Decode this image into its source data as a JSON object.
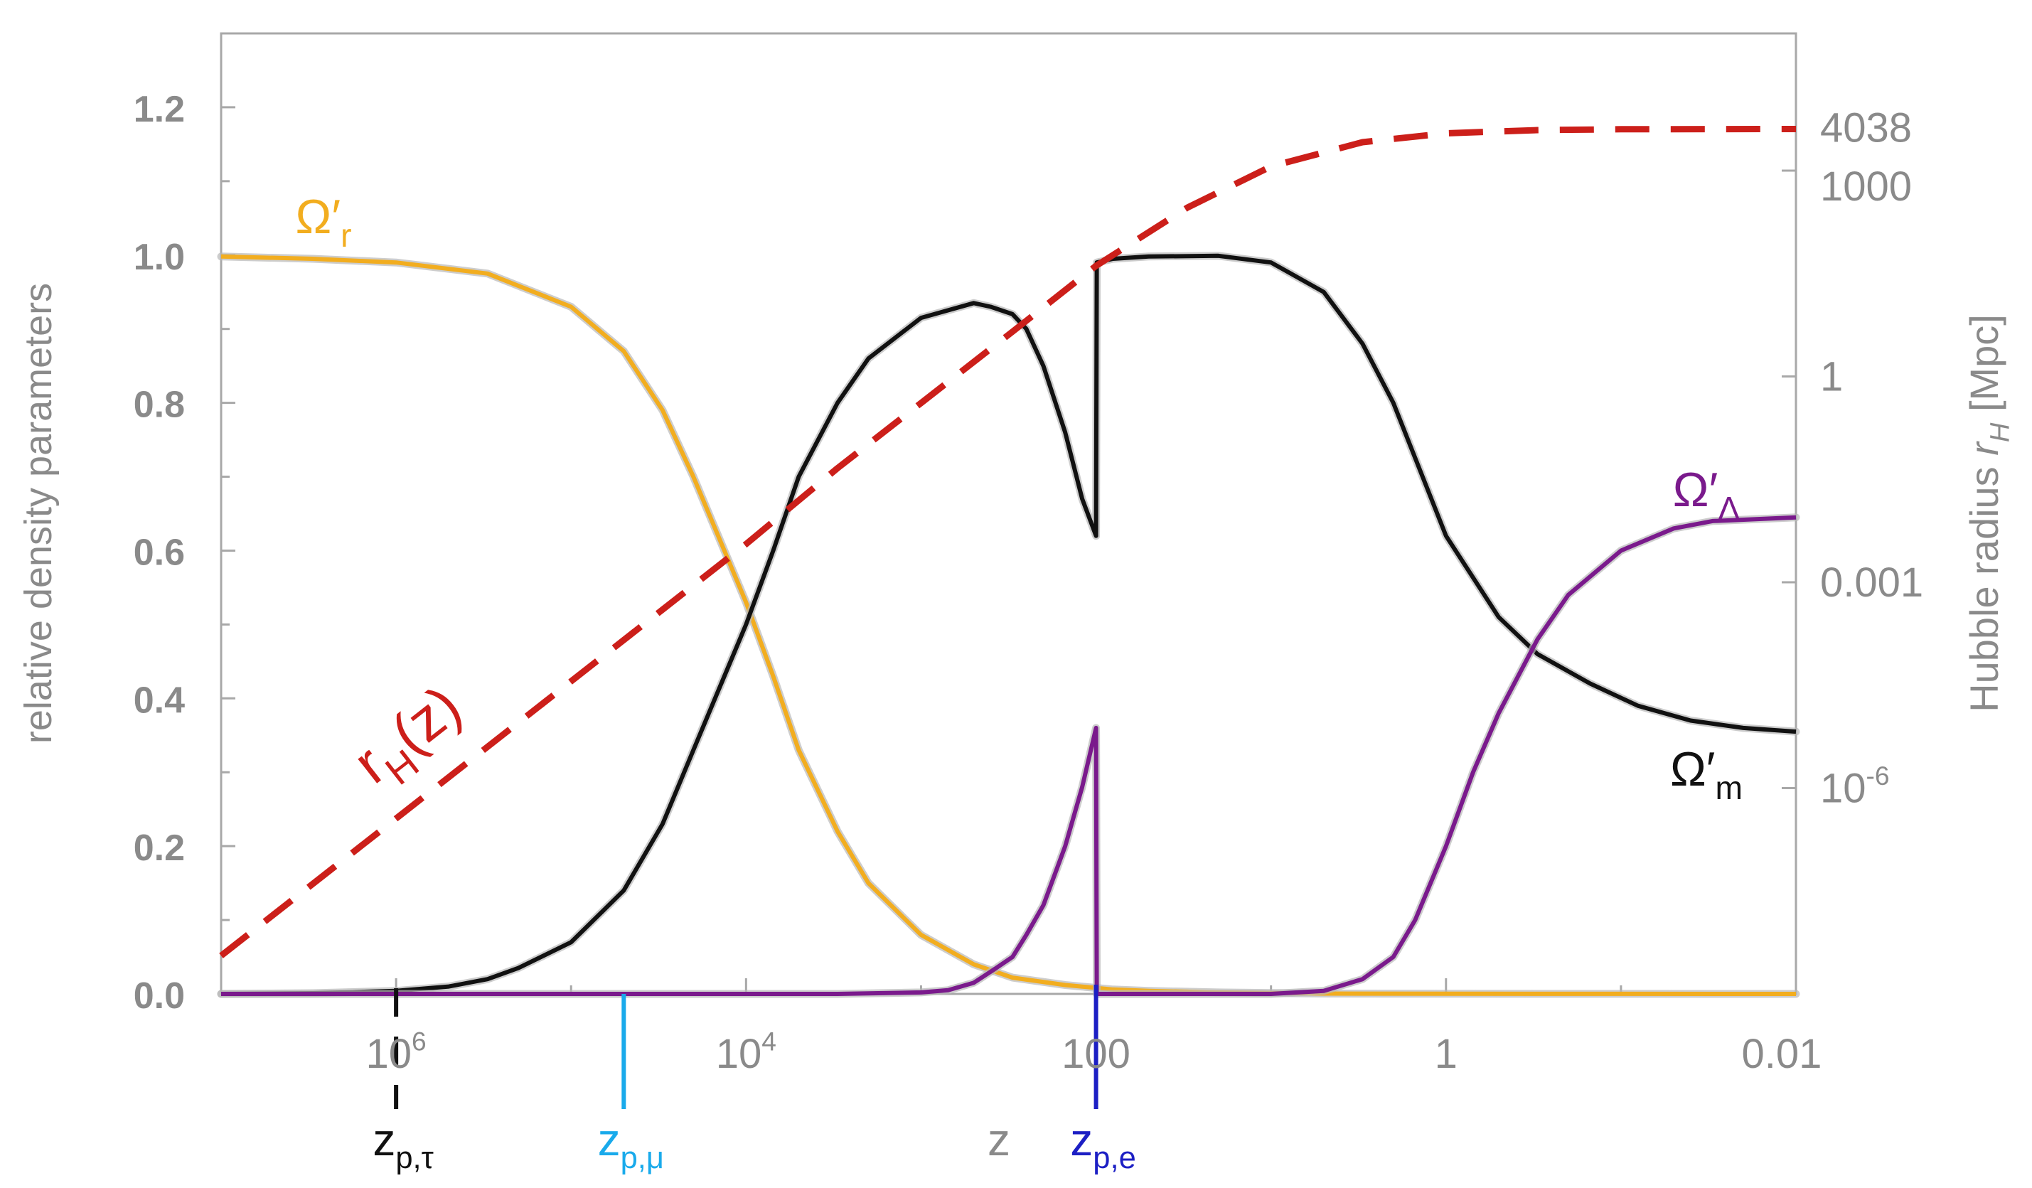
{
  "chart_data": {
    "type": "line",
    "x_axis": {
      "label": "z",
      "scale": "log",
      "reversed": true,
      "range": [
        10000000,
        0.01
      ],
      "ticks": [
        {
          "value": 1000000,
          "base": "10",
          "exp": "6"
        },
        {
          "value": 10000,
          "base": "10",
          "exp": "4"
        },
        {
          "value": 100,
          "label": "100"
        },
        {
          "value": 1,
          "label": "1"
        },
        {
          "value": 0.01,
          "label": "0.01"
        }
      ]
    },
    "y_left": {
      "label": "relative density parameters",
      "range": [
        0,
        1.3
      ],
      "ticks": [
        "0.0",
        "0.2",
        "0.4",
        "0.6",
        "0.8",
        "1.0",
        "1.2"
      ]
    },
    "y_right": {
      "label_main": "Hubble radius ",
      "label_var": "r",
      "label_sub": "H",
      "label_unit": " [Mpc]",
      "scale": "log",
      "range": [
        1e-09,
        100000
      ],
      "ticks": [
        {
          "value": 4038,
          "label": "4038"
        },
        {
          "value": 1000,
          "label": "1000"
        },
        {
          "value": 1,
          "label": "1"
        },
        {
          "value": 0.001,
          "label": "0.001"
        },
        {
          "value": 1e-06,
          "base": "10",
          "exp": "-6"
        }
      ]
    },
    "series": [
      {
        "name": "Ω′r",
        "base": "Ω′",
        "sub": "r",
        "color": "#f2ad1f",
        "axis": "left",
        "points": [
          [
            10000000,
            0.998
          ],
          [
            3000000,
            0.995
          ],
          [
            1000000,
            0.99
          ],
          [
            300000,
            0.975
          ],
          [
            100000,
            0.93
          ],
          [
            50000,
            0.87
          ],
          [
            30000,
            0.79
          ],
          [
            20000,
            0.7
          ],
          [
            10000,
            0.53
          ],
          [
            7000,
            0.43
          ],
          [
            5000,
            0.33
          ],
          [
            3000,
            0.22
          ],
          [
            2000,
            0.15
          ],
          [
            1000,
            0.08
          ],
          [
            500,
            0.04
          ],
          [
            300,
            0.022
          ],
          [
            150,
            0.012
          ],
          [
            80,
            0.006
          ],
          [
            50,
            0.004
          ],
          [
            20,
            0.002
          ],
          [
            5,
            0.0005
          ],
          [
            1,
            0.0002
          ],
          [
            0.01,
            0.0
          ]
        ]
      },
      {
        "name": "Ω′m",
        "base": "Ω′",
        "sub": "m",
        "color": "#111111",
        "axis": "left",
        "points": [
          [
            10000000,
            0.0
          ],
          [
            3000000,
            0.001
          ],
          [
            1000000,
            0.004
          ],
          [
            500000,
            0.01
          ],
          [
            300000,
            0.02
          ],
          [
            200000,
            0.035
          ],
          [
            100000,
            0.07
          ],
          [
            50000,
            0.14
          ],
          [
            30000,
            0.23
          ],
          [
            20000,
            0.33
          ],
          [
            10000,
            0.5
          ],
          [
            7000,
            0.6
          ],
          [
            5000,
            0.7
          ],
          [
            3000,
            0.8
          ],
          [
            2000,
            0.86
          ],
          [
            1000,
            0.915
          ],
          [
            500,
            0.935
          ],
          [
            400,
            0.93
          ],
          [
            300,
            0.92
          ],
          [
            250,
            0.9
          ],
          [
            200,
            0.85
          ],
          [
            150,
            0.76
          ],
          [
            120,
            0.67
          ],
          [
            100,
            0.62
          ],
          [
            99,
            0.99
          ],
          [
            80,
            0.995
          ],
          [
            50,
            0.998
          ],
          [
            20,
            0.999
          ],
          [
            10,
            0.99
          ],
          [
            5,
            0.95
          ],
          [
            3,
            0.88
          ],
          [
            2,
            0.8
          ],
          [
            1,
            0.62
          ],
          [
            0.5,
            0.51
          ],
          [
            0.3,
            0.46
          ],
          [
            0.15,
            0.42
          ],
          [
            0.08,
            0.39
          ],
          [
            0.04,
            0.37
          ],
          [
            0.02,
            0.36
          ],
          [
            0.01,
            0.355
          ]
        ]
      },
      {
        "name": "Ω′Λ",
        "base": "Ω′",
        "sub": "Λ",
        "color": "#7a1a8c",
        "axis": "left",
        "points": [
          [
            10000000,
            0.0
          ],
          [
            3000,
            0.0
          ],
          [
            1000,
            0.002
          ],
          [
            700,
            0.005
          ],
          [
            500,
            0.015
          ],
          [
            400,
            0.03
          ],
          [
            300,
            0.05
          ],
          [
            250,
            0.08
          ],
          [
            200,
            0.12
          ],
          [
            150,
            0.2
          ],
          [
            120,
            0.28
          ],
          [
            100,
            0.36
          ],
          [
            99,
            0.0
          ],
          [
            50,
            0.0
          ],
          [
            10,
            0.0
          ],
          [
            5,
            0.004
          ],
          [
            3,
            0.02
          ],
          [
            2,
            0.05
          ],
          [
            1.5,
            0.1
          ],
          [
            1,
            0.2
          ],
          [
            0.7,
            0.3
          ],
          [
            0.5,
            0.38
          ],
          [
            0.3,
            0.48
          ],
          [
            0.2,
            0.54
          ],
          [
            0.1,
            0.6
          ],
          [
            0.05,
            0.63
          ],
          [
            0.03,
            0.64
          ],
          [
            0.01,
            0.645
          ]
        ]
      },
      {
        "name": "rH(z)",
        "base": "r",
        "sub": "H",
        "suffix": "(z)",
        "color": "#cc1f1a",
        "axis": "right",
        "dashed": true,
        "points": [
          [
            10000000,
            3.6e-09
          ],
          [
            1000000,
            3.6e-07
          ],
          [
            100000,
            3.6e-05
          ],
          [
            30000,
            0.0004
          ],
          [
            10000,
            0.0036
          ],
          [
            3000,
            0.046
          ],
          [
            1000,
            0.41
          ],
          [
            300,
            4.5
          ],
          [
            100,
            41
          ],
          [
            30,
            290
          ],
          [
            10,
            1150
          ],
          [
            3,
            2600
          ],
          [
            1,
            3500
          ],
          [
            0.3,
            3900
          ],
          [
            0.1,
            4010
          ],
          [
            0.01,
            4038
          ]
        ]
      }
    ],
    "markers": [
      {
        "value": 1000000,
        "base": "z",
        "sub": "p,τ",
        "color": "#111111",
        "style": "dashed"
      },
      {
        "value": 50000,
        "base": "z",
        "sub": "p,μ",
        "color": "#19aaeb",
        "style": "solid"
      },
      {
        "value": 100,
        "base": "z",
        "sub": "p,e",
        "color": "#1c1fc4",
        "style": "solid"
      }
    ]
  }
}
